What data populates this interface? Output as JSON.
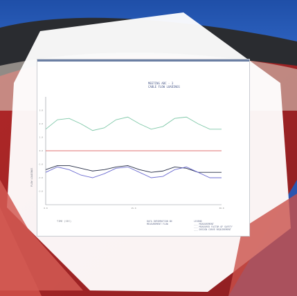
{
  "document": {
    "title_lines": [
      "MEETING ABC - 3",
      "CABLE FLOW LOADINGS"
    ],
    "ylabel": "FLOW LOADINGS",
    "xlabel": "TIME (SEC)",
    "info_lines": [
      "DATA INFORMATION ON",
      "MEASUREMENT FLOW"
    ],
    "legend_lines": [
      "LEGEND",
      "___ MEASUREMENT",
      "___ MEASURED FACTOR OF SAFETY",
      "___ DESIGN CURVE REQUIREMENT"
    ]
  },
  "chart_data": {
    "type": "line",
    "xlim": [
      0,
      30
    ],
    "ylim": [
      -4,
      4
    ],
    "xticks": [
      "0.0",
      "15.0",
      "30.0"
    ],
    "yticks": [
      "3.0",
      "2.0",
      "1.0",
      "0.0",
      "-1.0",
      "-2.0",
      "-3.0"
    ],
    "series": [
      {
        "color": "#7fc8a8",
        "x": [
          0,
          2,
          4,
          6,
          8,
          10,
          12,
          14,
          16,
          18,
          20,
          22,
          24,
          26,
          28,
          30
        ],
        "y": [
          1.6,
          2.3,
          2.4,
          2.0,
          1.5,
          1.7,
          2.3,
          2.5,
          2.0,
          1.6,
          1.8,
          2.4,
          2.5,
          2.0,
          1.6,
          1.6
        ]
      },
      {
        "color": "#e07070",
        "x": [
          0,
          30
        ],
        "y": [
          0.0,
          0.0
        ]
      },
      {
        "color": "#222a44",
        "x": [
          0,
          2,
          4,
          6,
          8,
          10,
          12,
          14,
          16,
          18,
          20,
          22,
          24,
          26,
          28,
          30
        ],
        "y": [
          -1.4,
          -1.1,
          -1.1,
          -1.3,
          -1.5,
          -1.4,
          -1.2,
          -1.1,
          -1.4,
          -1.6,
          -1.5,
          -1.2,
          -1.3,
          -1.6,
          -1.6,
          -1.6
        ]
      },
      {
        "color": "#6a6ad0",
        "x": [
          0,
          2,
          4,
          6,
          8,
          10,
          12,
          14,
          16,
          18,
          20,
          22,
          24,
          26,
          28,
          30
        ],
        "y": [
          -1.6,
          -1.2,
          -1.4,
          -1.8,
          -2.0,
          -1.7,
          -1.3,
          -1.2,
          -1.6,
          -2.0,
          -1.9,
          -1.4,
          -1.2,
          -1.6,
          -2.0,
          -2.0
        ]
      }
    ]
  },
  "colors": {
    "red": "#c23a3a",
    "blue": "#2a56b0",
    "white_hex": "#ffffff"
  }
}
